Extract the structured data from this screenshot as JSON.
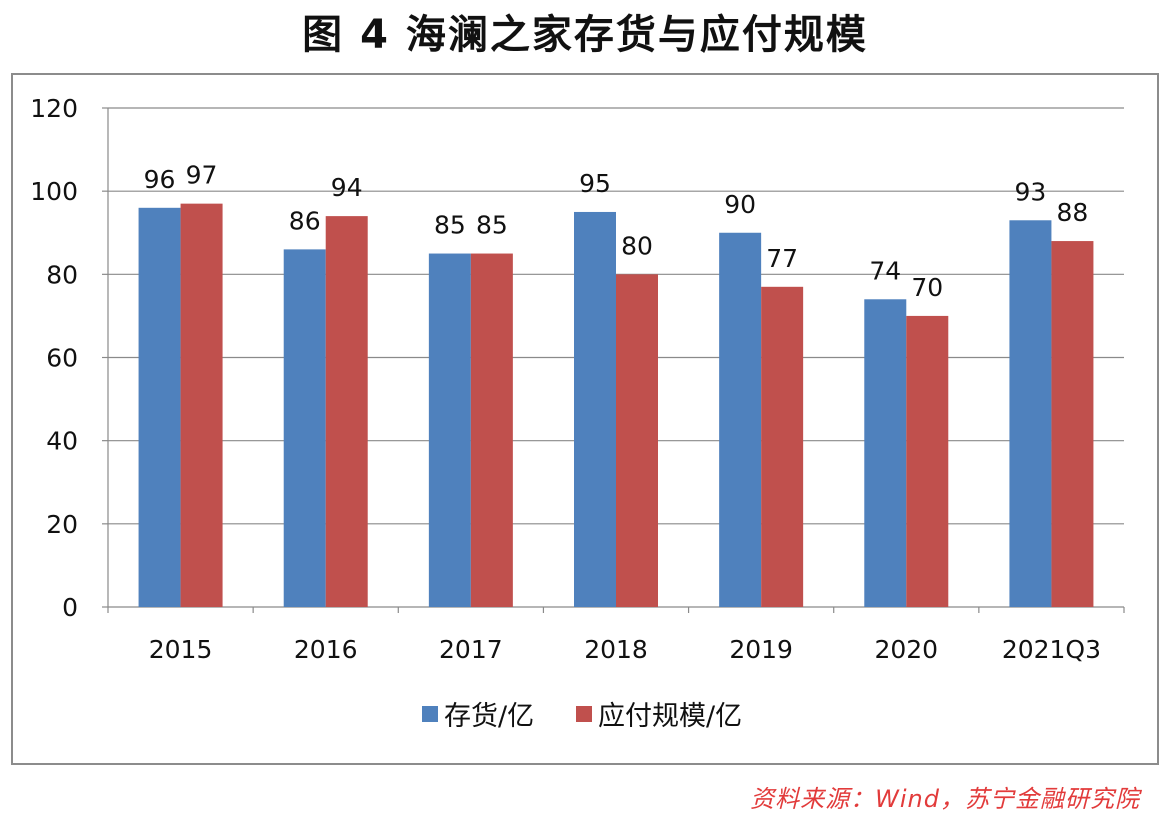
{
  "title": "图 4  海澜之家存货与应付规模",
  "source": "资料来源：Wind，苏宁金融研究院",
  "chart_data": {
    "type": "bar",
    "categories": [
      "2015",
      "2016",
      "2017",
      "2018",
      "2019",
      "2020",
      "2021Q3"
    ],
    "series": [
      {
        "name": "存货/亿",
        "color": "#4f81bd",
        "values": [
          96,
          86,
          85,
          95,
          90,
          74,
          93
        ]
      },
      {
        "name": "应付规模/亿",
        "color": "#c0504d",
        "values": [
          97,
          94,
          85,
          80,
          77,
          70,
          88
        ]
      }
    ],
    "ylim": [
      0,
      120
    ],
    "yticks": [
      0,
      20,
      40,
      60,
      80,
      100,
      120
    ],
    "grid": true,
    "legend": "bottom"
  }
}
